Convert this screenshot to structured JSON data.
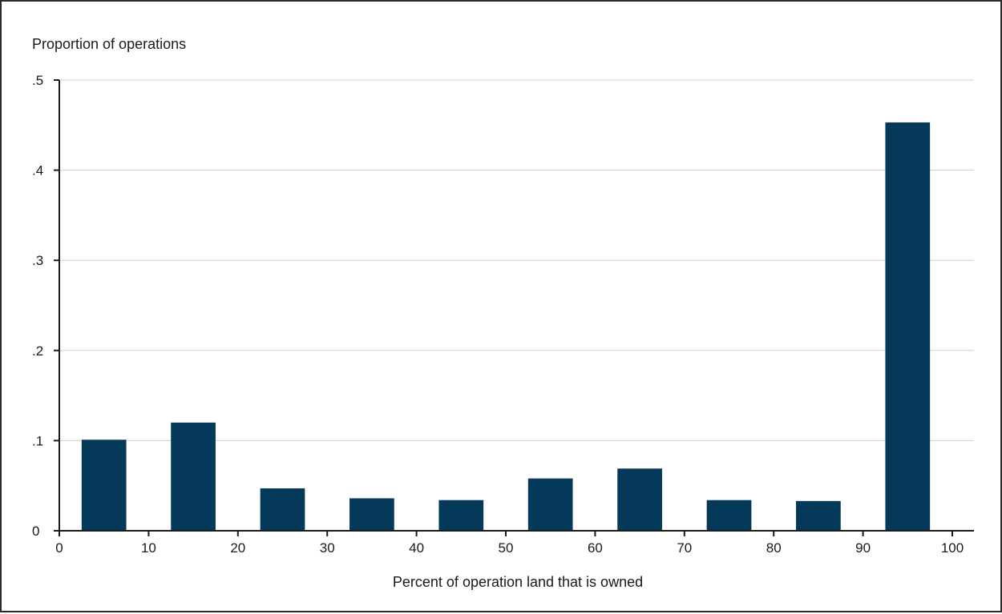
{
  "chart_data": {
    "type": "bar",
    "title": "",
    "ylabel": "Proportion of operations",
    "xlabel": "Percent of operation land that is owned",
    "xlim": [
      0,
      100
    ],
    "ylim": [
      0,
      0.5
    ],
    "x_ticks": [
      0,
      10,
      20,
      30,
      40,
      50,
      60,
      70,
      80,
      90,
      100
    ],
    "x_tick_labels": [
      "0",
      "10",
      "20",
      "30",
      "40",
      "50",
      "60",
      "70",
      "80",
      "90",
      "100"
    ],
    "y_ticks": [
      0,
      0.1,
      0.2,
      0.3,
      0.4,
      0.5
    ],
    "y_tick_labels": [
      "0",
      ".1",
      ".2",
      ".3",
      ".4",
      ".5"
    ],
    "bin_width": 10,
    "bar_width_fraction": 0.5,
    "bins": [
      {
        "start": 0,
        "end": 10,
        "value": 0.101
      },
      {
        "start": 10,
        "end": 20,
        "value": 0.12
      },
      {
        "start": 20,
        "end": 30,
        "value": 0.047
      },
      {
        "start": 30,
        "end": 40,
        "value": 0.036
      },
      {
        "start": 40,
        "end": 50,
        "value": 0.034
      },
      {
        "start": 50,
        "end": 60,
        "value": 0.058
      },
      {
        "start": 60,
        "end": 70,
        "value": 0.069
      },
      {
        "start": 70,
        "end": 80,
        "value": 0.034
      },
      {
        "start": 80,
        "end": 90,
        "value": 0.033
      },
      {
        "start": 90,
        "end": 100,
        "value": 0.453
      }
    ],
    "grid": true,
    "colors": {
      "bar": "#05395a",
      "grid": "#cfcfcf",
      "axis": "#1a1a1a"
    }
  }
}
